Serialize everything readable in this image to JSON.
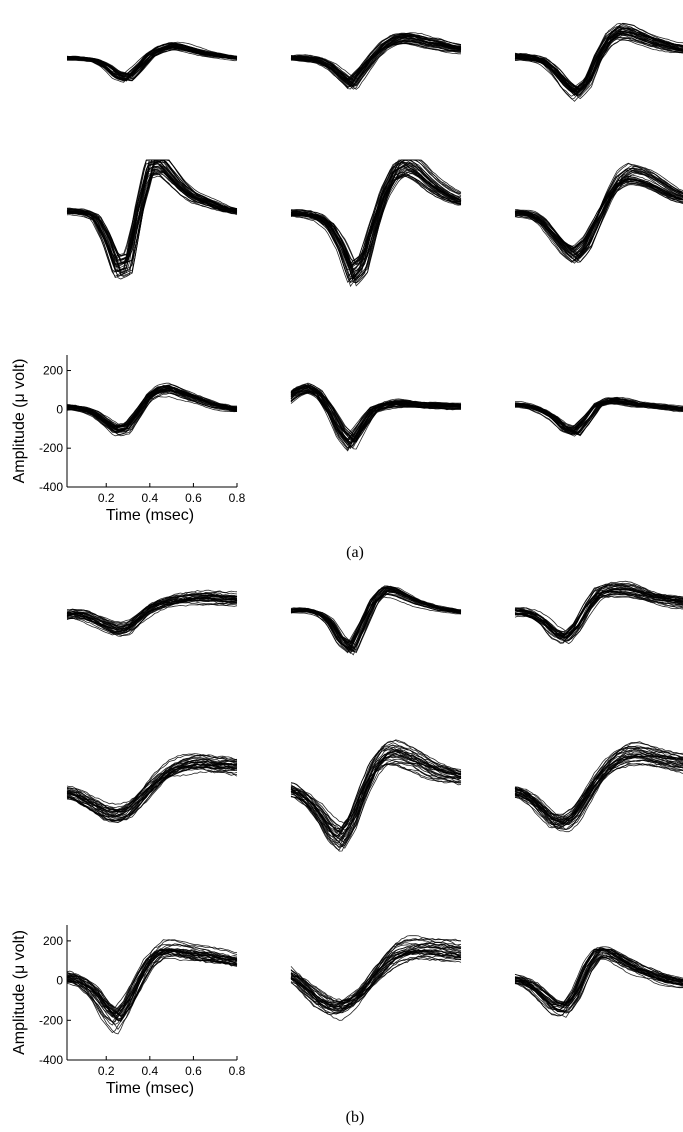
{
  "figure": {
    "captions": [
      "(a)",
      "(b)"
    ]
  },
  "colors": {
    "trace": "#000000",
    "axis": "#000000",
    "background": "#ffffff"
  },
  "chart_data": [
    {
      "type": "line",
      "panel": "a",
      "layout": "3x3 grid of spike-waveform overlays; axes drawn only on bottom-left subplot",
      "xlabel": "Time (msec)",
      "ylabel": "Amplitude (μ volt)",
      "xlim": [
        0.02,
        0.8
      ],
      "ylim": [
        -400,
        280
      ],
      "xticks": [
        0.2,
        0.4,
        0.6,
        0.8
      ],
      "yticks": [
        200,
        0,
        -200,
        -400
      ],
      "grid": false,
      "subplots": [
        {
          "traces": 35,
          "x": [
            0.0,
            0.05,
            0.1,
            0.15,
            0.2,
            0.25,
            0.3,
            0.35,
            0.4,
            0.45,
            0.5,
            0.55,
            0.6,
            0.65,
            0.7,
            0.75,
            0.8
          ],
          "mean": [
            20,
            20,
            15,
            5,
            -30,
            -90,
            -110,
            -40,
            40,
            80,
            100,
            90,
            70,
            50,
            40,
            30,
            20
          ],
          "spread": 20
        },
        {
          "traces": 35,
          "x": [
            0.0,
            0.05,
            0.1,
            0.15,
            0.2,
            0.25,
            0.3,
            0.35,
            0.4,
            0.45,
            0.5,
            0.55,
            0.6,
            0.65,
            0.7,
            0.75,
            0.8
          ],
          "mean": [
            20,
            20,
            15,
            5,
            -30,
            -90,
            -150,
            -60,
            30,
            100,
            140,
            150,
            140,
            120,
            110,
            90,
            80
          ],
          "spread": 30
        },
        {
          "traces": 35,
          "x": [
            0.0,
            0.05,
            0.1,
            0.15,
            0.2,
            0.25,
            0.3,
            0.35,
            0.4,
            0.45,
            0.5,
            0.55,
            0.6,
            0.65,
            0.7,
            0.75,
            0.8
          ],
          "mean": [
            30,
            30,
            20,
            0,
            -60,
            -150,
            -210,
            -140,
            30,
            150,
            200,
            190,
            160,
            130,
            110,
            90,
            80
          ],
          "spread": 35
        },
        {
          "traces": 35,
          "x": [
            0.0,
            0.05,
            0.1,
            0.15,
            0.2,
            0.25,
            0.3,
            0.35,
            0.4,
            0.45,
            0.5,
            0.55,
            0.6,
            0.65,
            0.7,
            0.75,
            0.8
          ],
          "mean": [
            30,
            30,
            25,
            0,
            -100,
            -240,
            -220,
            40,
            250,
            260,
            200,
            140,
            100,
            80,
            60,
            40,
            30
          ],
          "spread": 25
        },
        {
          "traces": 35,
          "x": [
            0.0,
            0.05,
            0.1,
            0.15,
            0.2,
            0.25,
            0.3,
            0.35,
            0.4,
            0.45,
            0.5,
            0.55,
            0.6,
            0.65,
            0.7,
            0.75,
            0.8
          ],
          "mean": [
            20,
            20,
            15,
            0,
            -40,
            -130,
            -270,
            -220,
            -40,
            120,
            220,
            250,
            220,
            170,
            130,
            100,
            80
          ],
          "spread": 25
        },
        {
          "traces": 35,
          "x": [
            0.0,
            0.05,
            0.1,
            0.15,
            0.2,
            0.25,
            0.3,
            0.35,
            0.4,
            0.45,
            0.5,
            0.55,
            0.6,
            0.65,
            0.7,
            0.75,
            0.8
          ],
          "mean": [
            20,
            20,
            10,
            -20,
            -80,
            -140,
            -180,
            -130,
            -20,
            90,
            170,
            200,
            190,
            170,
            140,
            110,
            90
          ],
          "spread": 25
        },
        {
          "traces": 35,
          "x": [
            0.0,
            0.05,
            0.1,
            0.15,
            0.2,
            0.25,
            0.3,
            0.35,
            0.4,
            0.45,
            0.5,
            0.55,
            0.6,
            0.65,
            0.7,
            0.75,
            0.8
          ],
          "mean": [
            10,
            10,
            0,
            -20,
            -60,
            -100,
            -90,
            -20,
            60,
            95,
            100,
            80,
            60,
            40,
            20,
            10,
            0
          ],
          "spread": 25
        },
        {
          "traces": 35,
          "x": [
            0.0,
            0.05,
            0.1,
            0.15,
            0.2,
            0.25,
            0.3,
            0.35,
            0.4,
            0.45,
            0.5,
            0.55,
            0.6,
            0.65,
            0.7,
            0.75,
            0.8
          ],
          "mean": [
            40,
            90,
            110,
            80,
            0,
            -110,
            -170,
            -80,
            0,
            20,
            30,
            30,
            25,
            20,
            20,
            15,
            15
          ],
          "spread": 25
        },
        {
          "traces": 35,
          "x": [
            0.0,
            0.05,
            0.1,
            0.15,
            0.2,
            0.25,
            0.3,
            0.35,
            0.4,
            0.45,
            0.5,
            0.55,
            0.6,
            0.65,
            0.7,
            0.75,
            0.8
          ],
          "mean": [
            20,
            20,
            10,
            -10,
            -40,
            -90,
            -110,
            -50,
            20,
            40,
            40,
            30,
            20,
            15,
            10,
            5,
            0
          ],
          "spread": 20
        }
      ]
    },
    {
      "type": "line",
      "panel": "b",
      "layout": "3x3 grid of spike-waveform overlays; axes drawn only on bottom-left subplot",
      "xlabel": "Time (msec)",
      "ylabel": "Amplitude (μ volt)",
      "xlim": [
        0.02,
        0.8
      ],
      "ylim": [
        -400,
        280
      ],
      "xticks": [
        0.2,
        0.4,
        0.6,
        0.8
      ],
      "yticks": [
        200,
        0,
        -200,
        -400
      ],
      "grid": false,
      "subplots": [
        {
          "traces": 30,
          "x": [
            0.0,
            0.05,
            0.1,
            0.15,
            0.2,
            0.25,
            0.3,
            0.35,
            0.4,
            0.45,
            0.5,
            0.55,
            0.6,
            0.65,
            0.7,
            0.75,
            0.8
          ],
          "mean": [
            0,
            10,
            0,
            -30,
            -60,
            -90,
            -80,
            -20,
            40,
            70,
            90,
            100,
            110,
            110,
            110,
            100,
            100
          ],
          "spread": 50
        },
        {
          "traces": 30,
          "x": [
            0.0,
            0.05,
            0.1,
            0.15,
            0.2,
            0.25,
            0.3,
            0.35,
            0.4,
            0.45,
            0.5,
            0.55,
            0.6,
            0.65,
            0.7,
            0.75,
            0.8
          ],
          "mean": [
            20,
            30,
            30,
            10,
            -40,
            -150,
            -200,
            -60,
            80,
            150,
            140,
            110,
            80,
            60,
            40,
            30,
            20
          ],
          "spread": 20
        },
        {
          "traces": 30,
          "x": [
            0.0,
            0.05,
            0.1,
            0.15,
            0.2,
            0.25,
            0.3,
            0.35,
            0.4,
            0.45,
            0.5,
            0.55,
            0.6,
            0.65,
            0.7,
            0.75,
            0.8
          ],
          "mean": [
            20,
            20,
            0,
            -40,
            -110,
            -140,
            -70,
            50,
            140,
            160,
            160,
            150,
            130,
            110,
            100,
            90,
            80
          ],
          "spread": 45
        },
        {
          "traces": 30,
          "x": [
            0.0,
            0.05,
            0.1,
            0.15,
            0.2,
            0.25,
            0.3,
            0.35,
            0.4,
            0.45,
            0.5,
            0.55,
            0.6,
            0.65,
            0.7,
            0.75,
            0.8
          ],
          "mean": [
            0,
            -10,
            -40,
            -70,
            -100,
            -110,
            -90,
            -40,
            20,
            70,
            110,
            130,
            140,
            140,
            130,
            130,
            120
          ],
          "spread": 50
        },
        {
          "traces": 30,
          "x": [
            0.0,
            0.05,
            0.1,
            0.15,
            0.2,
            0.25,
            0.3,
            0.35,
            0.4,
            0.45,
            0.5,
            0.55,
            0.6,
            0.65,
            0.7,
            0.75,
            0.8
          ],
          "mean": [
            20,
            0,
            -40,
            -100,
            -180,
            -220,
            -140,
            0,
            120,
            180,
            190,
            170,
            150,
            120,
            100,
            90,
            80
          ],
          "spread": 55
        },
        {
          "traces": 30,
          "x": [
            0.0,
            0.05,
            0.1,
            0.15,
            0.2,
            0.25,
            0.3,
            0.35,
            0.4,
            0.45,
            0.5,
            0.55,
            0.6,
            0.65,
            0.7,
            0.75,
            0.8
          ],
          "mean": [
            10,
            0,
            -30,
            -80,
            -130,
            -140,
            -100,
            -20,
            60,
            120,
            160,
            180,
            180,
            170,
            160,
            150,
            140
          ],
          "spread": 45
        },
        {
          "traces": 30,
          "x": [
            0.0,
            0.05,
            0.1,
            0.15,
            0.2,
            0.25,
            0.3,
            0.35,
            0.4,
            0.45,
            0.5,
            0.55,
            0.6,
            0.65,
            0.7,
            0.75,
            0.8
          ],
          "mean": [
            20,
            10,
            -20,
            -70,
            -150,
            -200,
            -120,
            0,
            100,
            150,
            160,
            150,
            140,
            130,
            120,
            110,
            100
          ],
          "spread": 55
        },
        {
          "traces": 30,
          "x": [
            0.0,
            0.05,
            0.1,
            0.15,
            0.2,
            0.25,
            0.3,
            0.35,
            0.4,
            0.45,
            0.5,
            0.55,
            0.6,
            0.65,
            0.7,
            0.75,
            0.8
          ],
          "mean": [
            40,
            10,
            -40,
            -90,
            -120,
            -130,
            -100,
            -50,
            20,
            80,
            130,
            150,
            160,
            160,
            155,
            150,
            140
          ],
          "spread": 55
        },
        {
          "traces": 30,
          "x": [
            0.0,
            0.05,
            0.1,
            0.15,
            0.2,
            0.25,
            0.3,
            0.35,
            0.4,
            0.45,
            0.5,
            0.55,
            0.6,
            0.65,
            0.7,
            0.75,
            0.8
          ],
          "mean": [
            10,
            0,
            -30,
            -80,
            -130,
            -140,
            -70,
            60,
            140,
            140,
            110,
            80,
            50,
            30,
            10,
            0,
            -10
          ],
          "spread": 40
        }
      ]
    }
  ]
}
